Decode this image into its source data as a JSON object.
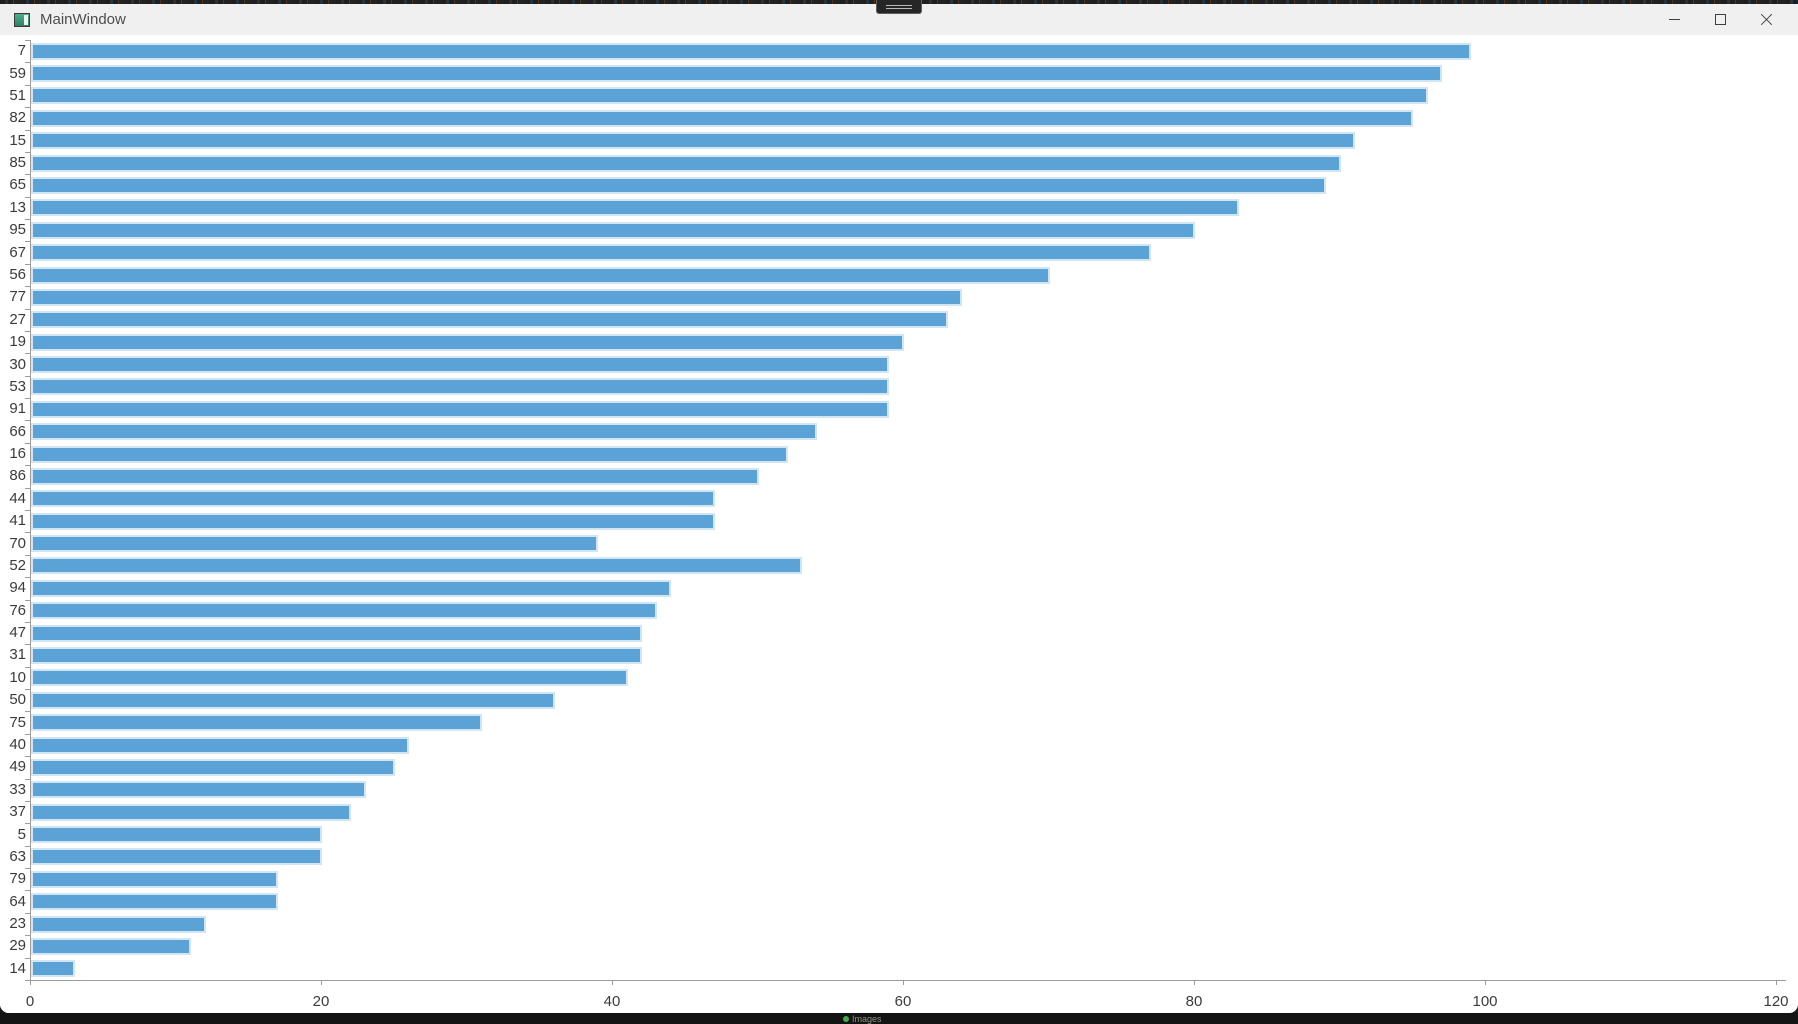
{
  "window": {
    "title": "MainWindow",
    "controls": {
      "minimize": "minimize",
      "maximize": "maximize",
      "close": "close"
    }
  },
  "taskbar": {
    "label": "Images"
  },
  "chart_data": {
    "type": "bar",
    "orientation": "horizontal",
    "title": "",
    "xlabel": "",
    "ylabel": "",
    "categories": [
      "7",
      "59",
      "51",
      "82",
      "15",
      "85",
      "65",
      "13",
      "95",
      "67",
      "56",
      "77",
      "27",
      "19",
      "30",
      "53",
      "91",
      "66",
      "16",
      "86",
      "44",
      "41",
      "70",
      "52",
      "94",
      "76",
      "47",
      "31",
      "10",
      "50",
      "75",
      "40",
      "49",
      "33",
      "37",
      "5",
      "63",
      "79",
      "64",
      "23",
      "29",
      "14"
    ],
    "values": [
      99,
      97,
      96,
      95,
      91,
      90,
      89,
      83,
      80,
      77,
      70,
      64,
      63,
      60,
      59,
      59,
      59,
      54,
      52,
      50,
      47,
      47,
      39,
      53,
      44,
      43,
      42,
      42,
      41,
      36,
      31,
      26,
      25,
      23,
      22,
      20,
      20,
      17,
      17,
      12,
      11,
      3
    ],
    "xlim": [
      0,
      120
    ],
    "x_ticks": [
      0,
      20,
      40,
      60,
      80,
      100,
      120
    ],
    "grid": false,
    "legend": false,
    "bar_color": "#5ba3d6",
    "bar_border_color": "#d2e5f3",
    "axis_color": "#9c9c9c",
    "label_color": "#3b3b3b"
  }
}
